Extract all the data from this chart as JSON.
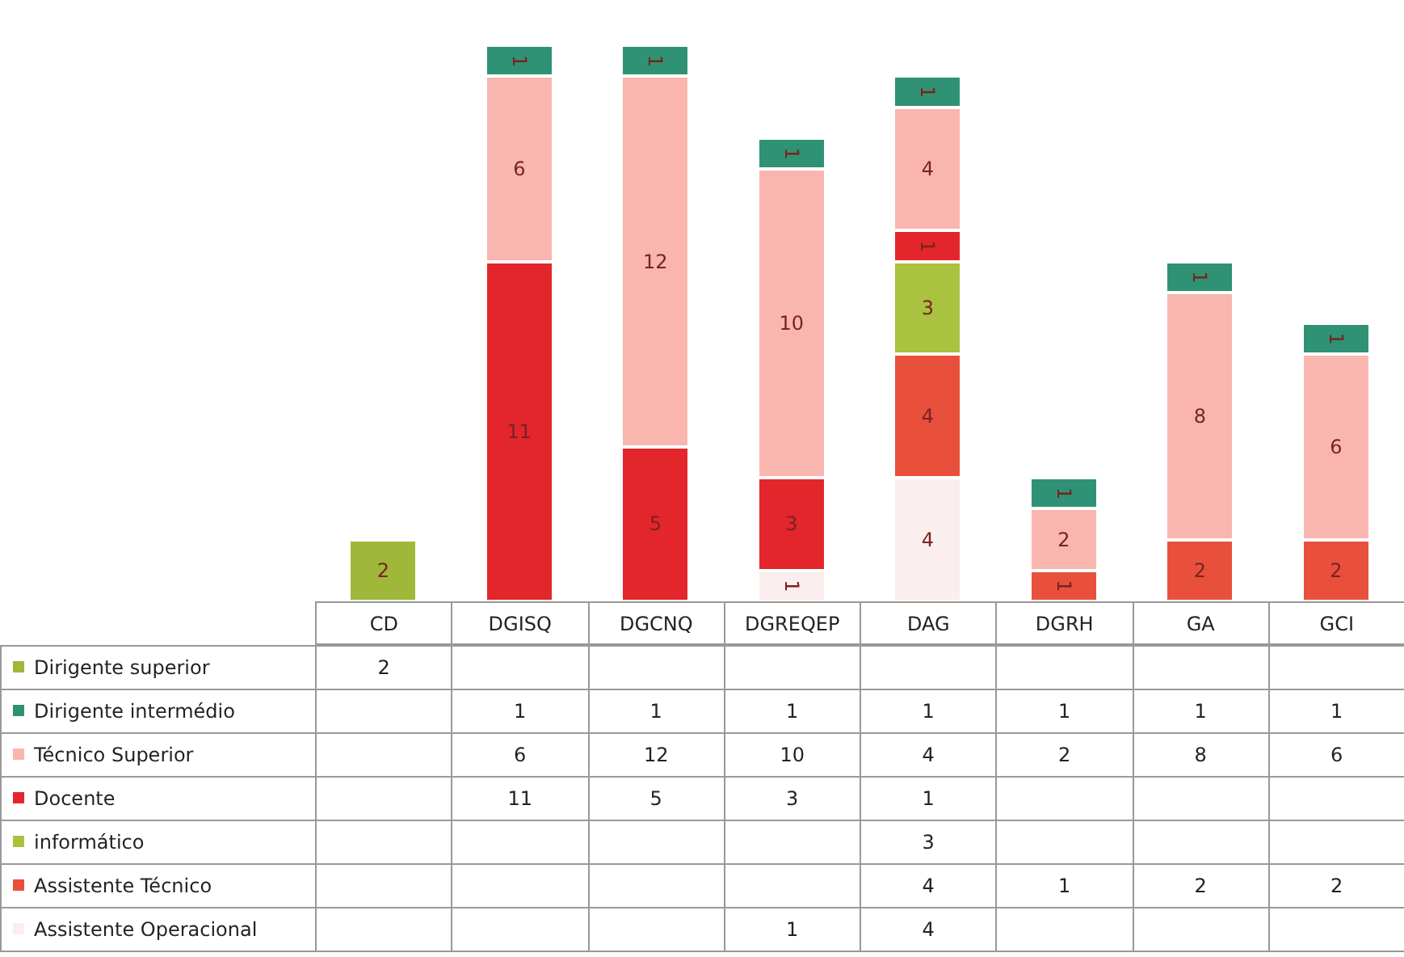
{
  "chart_data": [
    {
      "type": "bar",
      "stacked": true,
      "grid": false,
      "categories": [
        null,
        null,
        null,
        null,
        null,
        null,
        null,
        null
      ],
      "series": [
        {
          "color": "#fbeeee",
          "values": [
            null,
            null,
            null,
            1,
            4,
            null,
            null,
            null
          ],
          "value_labels": [
            null,
            null,
            null,
            "1",
            "4",
            null,
            null,
            null
          ]
        },
        {
          "color": "#e8503c",
          "values": [
            null,
            null,
            null,
            null,
            4,
            1,
            2,
            2
          ],
          "value_labels": [
            null,
            null,
            null,
            null,
            "4",
            "1",
            "2",
            "2"
          ]
        },
        {
          "color": "#a9c23f",
          "values": [
            null,
            null,
            null,
            null,
            3,
            null,
            null,
            null
          ],
          "value_labels": [
            null,
            null,
            null,
            null,
            "3",
            null,
            null,
            null
          ]
        },
        {
          "color": "#e3262b",
          "values": [
            null,
            11,
            5,
            3,
            1,
            null,
            null,
            null
          ],
          "value_labels": [
            null,
            "11",
            "5",
            "3",
            "1",
            null,
            null,
            null
          ]
        },
        {
          "color": "#f8b6ae",
          "values": [
            null,
            6,
            12,
            10,
            4,
            2,
            8,
            6
          ],
          "value_labels": [
            null,
            "6",
            "12",
            "10",
            "4",
            "2",
            "8",
            "6"
          ]
        },
        {
          "color": "#2f9274",
          "values": [
            null,
            1,
            1,
            1,
            1,
            1,
            1,
            1
          ],
          "value_labels": [
            null,
            "1",
            "1",
            "1",
            "1",
            "1",
            "1",
            "1"
          ]
        },
        {
          "color": "#9fb83a",
          "values": [
            2,
            null,
            null,
            null,
            null,
            null,
            null,
            null
          ],
          "value_labels": [
            "2",
            null,
            null,
            null,
            null,
            null,
            null,
            null
          ]
        }
      ]
    },
    {
      "type": "heatmap",
      "data_labels": true,
      "categories": [
        "CD",
        "DGISQ",
        "DGCNQ",
        "DGREQEP",
        "DAG",
        "DGRH",
        "GA",
        "GCI"
      ],
      "y_categories": [
        "Dirigente superior",
        "Dirigente intermédio",
        "Técnico Superior",
        "Docente",
        "informático",
        "Assistente Técnico",
        "Assistente Operacional"
      ],
      "cells": [
        [
          2,
          null,
          null,
          null,
          null,
          null,
          null,
          null
        ],
        [
          null,
          1,
          1,
          1,
          1,
          1,
          1,
          1
        ],
        [
          null,
          6,
          12,
          10,
          4,
          2,
          8,
          6
        ],
        [
          null,
          11,
          5,
          3,
          1,
          null,
          null,
          null
        ],
        [
          null,
          null,
          null,
          null,
          3,
          null,
          null,
          null
        ],
        [
          null,
          null,
          null,
          null,
          4,
          1,
          2,
          2
        ],
        [
          null,
          null,
          null,
          1,
          4,
          null,
          null,
          null
        ]
      ]
    }
  ]
}
